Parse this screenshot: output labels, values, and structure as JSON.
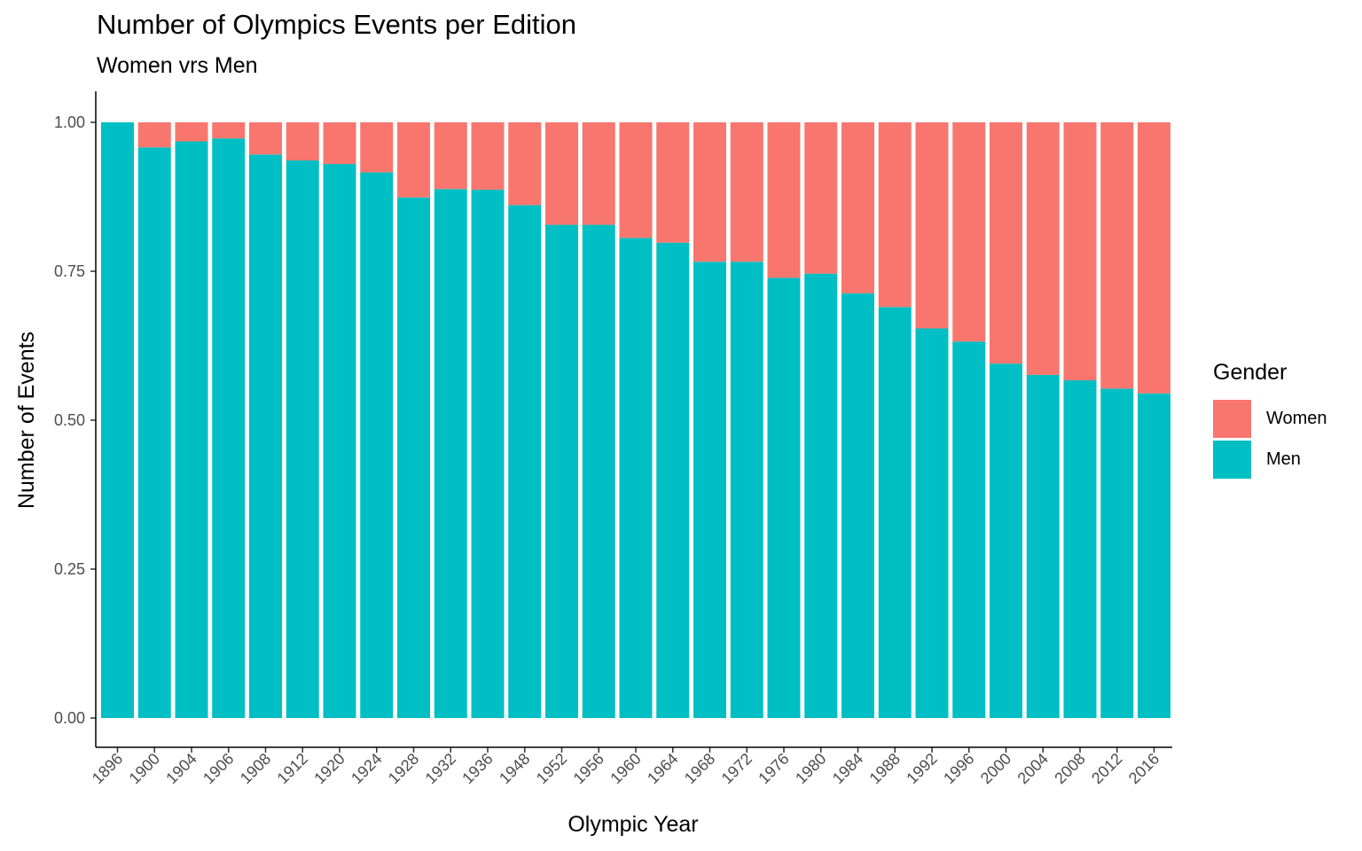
{
  "chart_data": {
    "type": "bar",
    "stacked": true,
    "title": "Number of Olympics Events per Edition",
    "subtitle": "Women vrs Men",
    "xlabel": "Olympic Year",
    "ylabel": "Number of Events",
    "ylim": [
      0,
      1
    ],
    "yticks": [
      "0.00",
      "0.25",
      "0.50",
      "0.75",
      "1.00"
    ],
    "ytick_values": [
      0,
      0.25,
      0.5,
      0.75,
      1.0
    ],
    "grid": false,
    "legend": {
      "title": "Gender",
      "placement": "right"
    },
    "categories": [
      "1896",
      "1900",
      "1904",
      "1906",
      "1908",
      "1912",
      "1920",
      "1924",
      "1928",
      "1932",
      "1936",
      "1948",
      "1952",
      "1956",
      "1960",
      "1964",
      "1968",
      "1972",
      "1976",
      "1980",
      "1984",
      "1988",
      "1992",
      "1996",
      "2000",
      "2004",
      "2008",
      "2012",
      "2016"
    ],
    "series": [
      {
        "name": "Men",
        "color": "#00BFC4",
        "values": [
          1.0,
          0.958,
          0.968,
          0.973,
          0.946,
          0.936,
          0.93,
          0.916,
          0.874,
          0.888,
          0.887,
          0.861,
          0.828,
          0.828,
          0.806,
          0.798,
          0.766,
          0.766,
          0.739,
          0.746,
          0.713,
          0.69,
          0.654,
          0.632,
          0.595,
          0.576,
          0.567,
          0.553,
          0.545
        ]
      },
      {
        "name": "Women",
        "color": "#F8766D",
        "values": [
          0.0,
          0.042,
          0.032,
          0.027,
          0.054,
          0.064,
          0.07,
          0.084,
          0.126,
          0.112,
          0.113,
          0.139,
          0.172,
          0.172,
          0.194,
          0.202,
          0.234,
          0.234,
          0.261,
          0.254,
          0.287,
          0.31,
          0.346,
          0.368,
          0.405,
          0.424,
          0.433,
          0.447,
          0.455
        ]
      }
    ]
  }
}
